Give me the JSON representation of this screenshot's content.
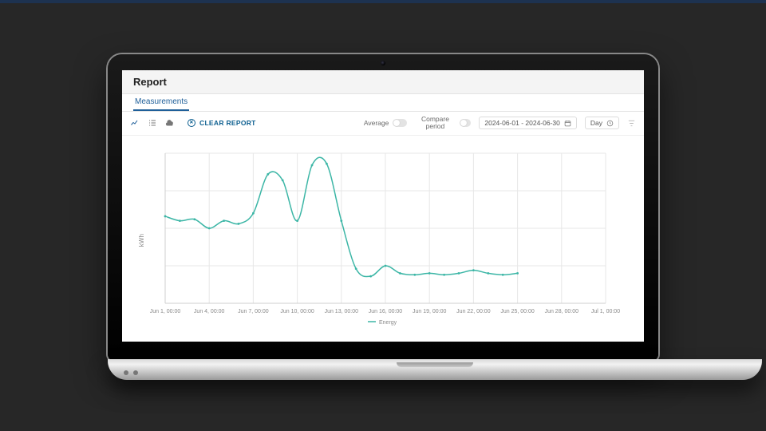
{
  "page": {
    "background_color": "#272727",
    "top_border_color": "#1d3250"
  },
  "header": {
    "title": "Report"
  },
  "tabs": [
    {
      "label": "Measurements",
      "active": true
    }
  ],
  "toolbar": {
    "clear_label": "CLEAR REPORT",
    "average_label": "Average",
    "compare_label": "Compare period",
    "date_range_label": "2024-06-01 - 2024-06-30",
    "granularity_label": "Day",
    "average_on": false,
    "compare_on": false
  },
  "chart": {
    "type": "line",
    "y_axis_label": "kWh",
    "background_color": "#ffffff",
    "grid_color": "#e7e7e7",
    "axis_color": "#cfcfcf",
    "tick_color": "#8a8a8a",
    "line_color": "#3cb6a6",
    "line_width": 1.5,
    "marker_radius": 1.4,
    "x_ticks": [
      "Jun 1, 00:00",
      "Jun 4, 00:00",
      "Jun 7, 00:00",
      "Jun 10, 00:00",
      "Jun 13, 00:00",
      "Jun 16, 00:00",
      "Jun 19, 00:00",
      "Jun 22, 00:00",
      "Jun 25, 00:00",
      "Jun 28, 00:00",
      "Jul 1, 00:00"
    ],
    "x_domain_days": 30,
    "x_tick_days": [
      1,
      4,
      7,
      10,
      13,
      16,
      19,
      22,
      25,
      28,
      31
    ],
    "y_domain": [
      0,
      100
    ],
    "y_gridlines": [
      0,
      25,
      50,
      75,
      100
    ],
    "legend": {
      "label": "Energy",
      "color": "#3cb6a6"
    },
    "series": [
      {
        "x": 1,
        "y": 58
      },
      {
        "x": 2,
        "y": 55
      },
      {
        "x": 3,
        "y": 56
      },
      {
        "x": 4,
        "y": 50
      },
      {
        "x": 5,
        "y": 55
      },
      {
        "x": 6,
        "y": 53
      },
      {
        "x": 7,
        "y": 60
      },
      {
        "x": 8,
        "y": 86
      },
      {
        "x": 9,
        "y": 82
      },
      {
        "x": 10,
        "y": 55
      },
      {
        "x": 11,
        "y": 92
      },
      {
        "x": 12,
        "y": 93
      },
      {
        "x": 13,
        "y": 55
      },
      {
        "x": 14,
        "y": 23
      },
      {
        "x": 15,
        "y": 18
      },
      {
        "x": 16,
        "y": 25
      },
      {
        "x": 17,
        "y": 20
      },
      {
        "x": 18,
        "y": 19
      },
      {
        "x": 19,
        "y": 20
      },
      {
        "x": 20,
        "y": 19
      },
      {
        "x": 21,
        "y": 20
      },
      {
        "x": 22,
        "y": 22
      },
      {
        "x": 23,
        "y": 20
      },
      {
        "x": 24,
        "y": 19
      },
      {
        "x": 25,
        "y": 20
      }
    ]
  }
}
